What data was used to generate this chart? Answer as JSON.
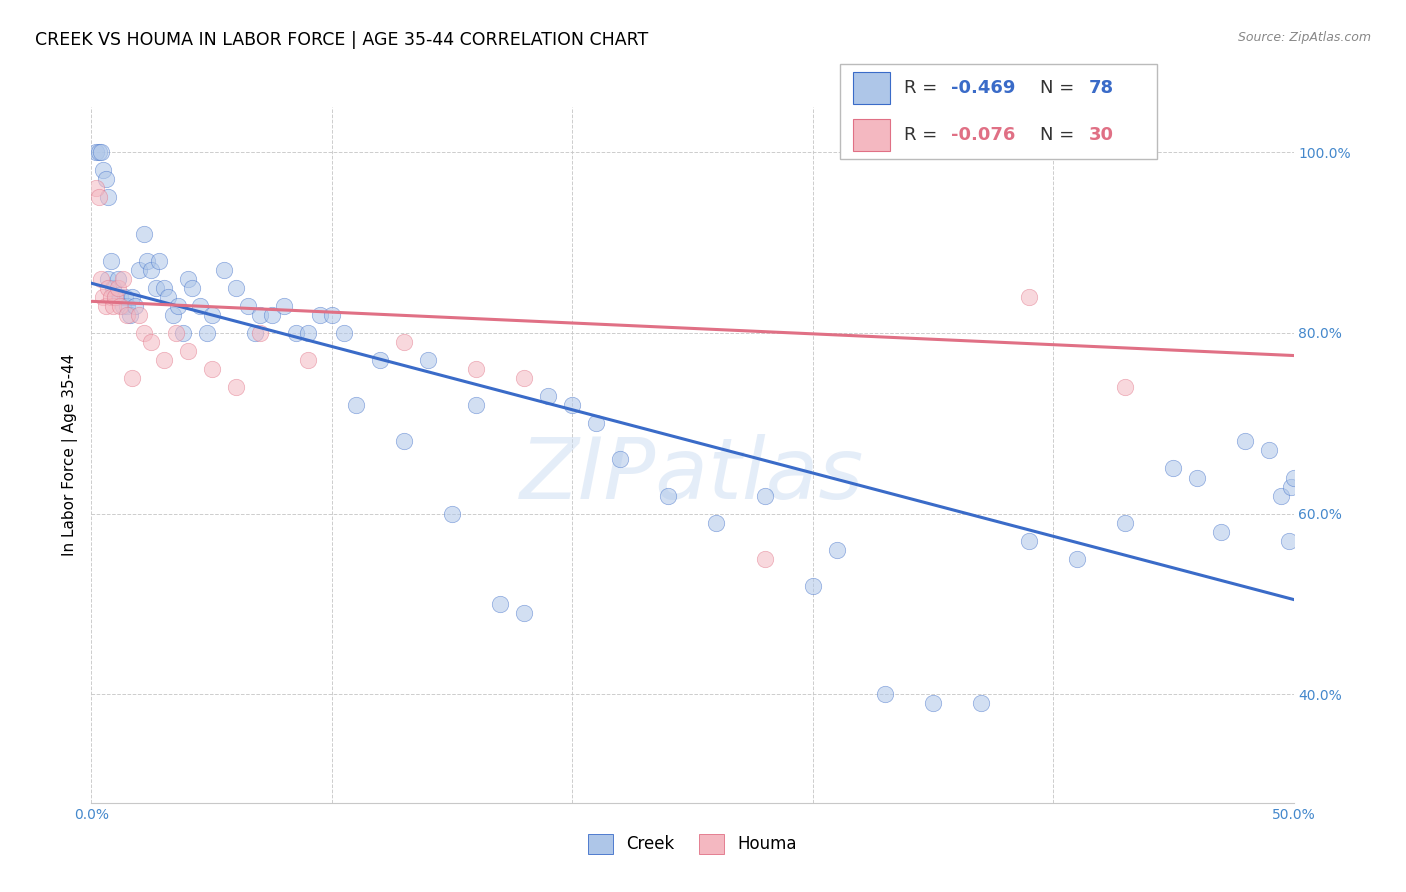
{
  "title": "CREEK VS HOUMA IN LABOR FORCE | AGE 35-44 CORRELATION CHART",
  "source": "Source: ZipAtlas.com",
  "ylabel": "In Labor Force | Age 35-44",
  "xlim": [
    0.0,
    0.5
  ],
  "ylim": [
    0.28,
    1.05
  ],
  "creek_R": -0.469,
  "creek_N": 78,
  "houma_R": -0.076,
  "houma_N": 30,
  "creek_color": "#aec6e8",
  "houma_color": "#f4b8c1",
  "creek_line_color": "#3a6bc8",
  "houma_line_color": "#e07085",
  "watermark": "ZIPatlas",
  "creek_line_x0": 0.0,
  "creek_line_y0": 0.855,
  "creek_line_x1": 0.5,
  "creek_line_y1": 0.505,
  "houma_line_x0": 0.0,
  "houma_line_y0": 0.835,
  "houma_line_x1": 0.5,
  "houma_line_y1": 0.775,
  "creek_x": [
    0.002,
    0.003,
    0.004,
    0.005,
    0.006,
    0.007,
    0.007,
    0.008,
    0.009,
    0.01,
    0.011,
    0.012,
    0.013,
    0.014,
    0.015,
    0.016,
    0.017,
    0.018,
    0.02,
    0.022,
    0.023,
    0.025,
    0.027,
    0.028,
    0.03,
    0.032,
    0.034,
    0.036,
    0.038,
    0.04,
    0.042,
    0.045,
    0.048,
    0.05,
    0.055,
    0.06,
    0.065,
    0.068,
    0.07,
    0.075,
    0.08,
    0.085,
    0.09,
    0.095,
    0.1,
    0.105,
    0.11,
    0.12,
    0.13,
    0.14,
    0.15,
    0.16,
    0.17,
    0.18,
    0.19,
    0.2,
    0.21,
    0.22,
    0.24,
    0.26,
    0.28,
    0.3,
    0.31,
    0.33,
    0.35,
    0.37,
    0.39,
    0.41,
    0.43,
    0.45,
    0.46,
    0.47,
    0.48,
    0.49,
    0.495,
    0.498,
    0.499,
    0.5
  ],
  "creek_y": [
    1.0,
    1.0,
    1.0,
    0.98,
    0.97,
    0.95,
    0.86,
    0.88,
    0.85,
    0.84,
    0.86,
    0.84,
    0.83,
    0.84,
    0.83,
    0.82,
    0.84,
    0.83,
    0.87,
    0.91,
    0.88,
    0.87,
    0.85,
    0.88,
    0.85,
    0.84,
    0.82,
    0.83,
    0.8,
    0.86,
    0.85,
    0.83,
    0.8,
    0.82,
    0.87,
    0.85,
    0.83,
    0.8,
    0.82,
    0.82,
    0.83,
    0.8,
    0.8,
    0.82,
    0.82,
    0.8,
    0.72,
    0.77,
    0.68,
    0.77,
    0.6,
    0.72,
    0.5,
    0.49,
    0.73,
    0.72,
    0.7,
    0.66,
    0.62,
    0.59,
    0.62,
    0.52,
    0.56,
    0.4,
    0.39,
    0.39,
    0.57,
    0.55,
    0.59,
    0.65,
    0.64,
    0.58,
    0.68,
    0.67,
    0.62,
    0.57,
    0.63,
    0.64
  ],
  "houma_x": [
    0.002,
    0.003,
    0.004,
    0.005,
    0.006,
    0.007,
    0.008,
    0.009,
    0.01,
    0.011,
    0.012,
    0.013,
    0.015,
    0.017,
    0.02,
    0.022,
    0.025,
    0.03,
    0.035,
    0.04,
    0.05,
    0.06,
    0.07,
    0.09,
    0.13,
    0.16,
    0.18,
    0.28,
    0.39,
    0.43
  ],
  "houma_y": [
    0.96,
    0.95,
    0.86,
    0.84,
    0.83,
    0.85,
    0.84,
    0.83,
    0.84,
    0.85,
    0.83,
    0.86,
    0.82,
    0.75,
    0.82,
    0.8,
    0.79,
    0.77,
    0.8,
    0.78,
    0.76,
    0.74,
    0.8,
    0.77,
    0.79,
    0.76,
    0.75,
    0.55,
    0.84,
    0.74
  ]
}
